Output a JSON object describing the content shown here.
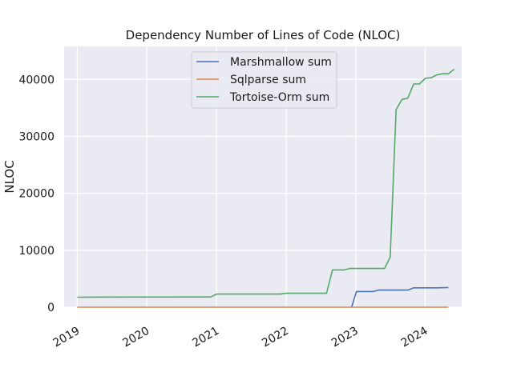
{
  "chart_data": {
    "type": "line",
    "title": "Dependency Number of Lines of Code (NLOC)",
    "xlabel": "",
    "ylabel": "NLOC",
    "xlim": [
      "2018-10-24",
      "2024-07-10"
    ],
    "ylim": [
      0,
      45800
    ],
    "grid": true,
    "legend_position": "top-center",
    "x_ticks": [
      {
        "date": "2019-01-01",
        "label": "2019"
      },
      {
        "date": "2020-01-01",
        "label": "2020"
      },
      {
        "date": "2021-01-01",
        "label": "2021"
      },
      {
        "date": "2022-01-01",
        "label": "2022"
      },
      {
        "date": "2023-01-01",
        "label": "2023"
      },
      {
        "date": "2024-01-01",
        "label": "2024"
      }
    ],
    "y_ticks": [
      {
        "value": 0,
        "label": "0"
      },
      {
        "value": 10000,
        "label": "10000"
      },
      {
        "value": 20000,
        "label": "20000"
      },
      {
        "value": 30000,
        "label": "30000"
      },
      {
        "value": 40000,
        "label": "40000"
      }
    ],
    "series": [
      {
        "name": "Marshmallow sum",
        "color": "#4c72b0",
        "points": [
          [
            "2022-12-10",
            0
          ],
          [
            "2023-01-05",
            2750
          ],
          [
            "2023-04-01",
            2750
          ],
          [
            "2023-05-01",
            3000
          ],
          [
            "2023-10-01",
            3000
          ],
          [
            "2023-11-01",
            3400
          ],
          [
            "2024-03-01",
            3400
          ],
          [
            "2024-05-01",
            3450
          ]
        ]
      },
      {
        "name": "Sqlparse sum",
        "color": "#dd8452",
        "points": [
          [
            "2019-01-01",
            0
          ],
          [
            "2024-05-01",
            0
          ]
        ]
      },
      {
        "name": "Tortoise-Orm sum",
        "color": "#55a868",
        "points": [
          [
            "2019-01-01",
            1750
          ],
          [
            "2019-06-01",
            1780
          ],
          [
            "2020-12-01",
            1800
          ],
          [
            "2021-01-01",
            2300
          ],
          [
            "2021-12-01",
            2300
          ],
          [
            "2022-01-01",
            2450
          ],
          [
            "2022-08-01",
            2450
          ],
          [
            "2022-09-01",
            6550
          ],
          [
            "2022-11-01",
            6550
          ],
          [
            "2022-12-01",
            6800
          ],
          [
            "2023-06-01",
            6800
          ],
          [
            "2023-07-01",
            8800
          ],
          [
            "2023-08-01",
            34700
          ],
          [
            "2023-09-01",
            36500
          ],
          [
            "2023-10-01",
            36700
          ],
          [
            "2023-11-01",
            39200
          ],
          [
            "2023-12-01",
            39200
          ],
          [
            "2024-01-01",
            40200
          ],
          [
            "2024-02-01",
            40300
          ],
          [
            "2024-03-01",
            40800
          ],
          [
            "2024-04-01",
            41000
          ],
          [
            "2024-05-01",
            41000
          ],
          [
            "2024-06-01",
            41800
          ]
        ]
      }
    ]
  }
}
